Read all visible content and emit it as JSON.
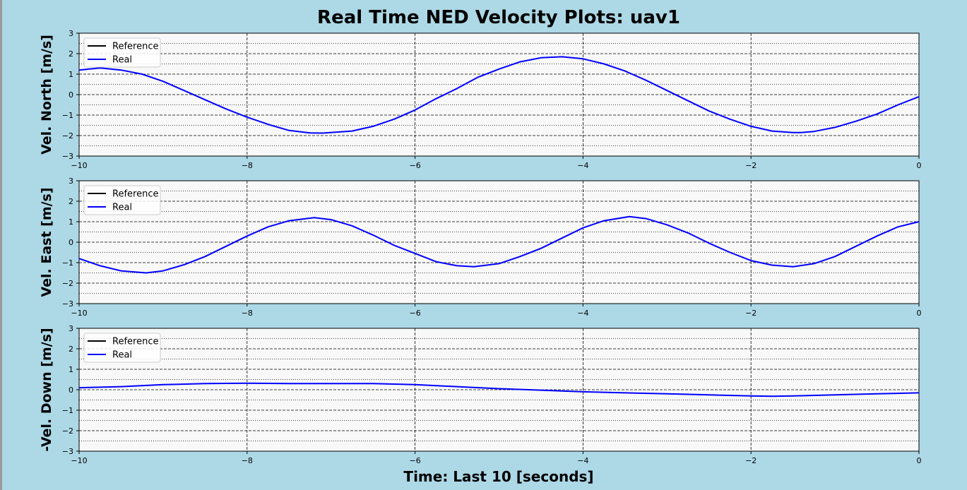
{
  "figure": {
    "title": "Real Time NED Velocity Plots: uav1",
    "xlabel": "Time: Last 10 [seconds]",
    "background_color": "#add8e6",
    "plot_background": "#f8f8f8"
  },
  "chart_data": [
    {
      "type": "line",
      "ylabel": "Vel. North [m/s]",
      "xlim": [
        -10,
        0
      ],
      "ylim": [
        -3,
        3
      ],
      "xticks": [
        "−10",
        "−8",
        "−6",
        "−4",
        "−2",
        "0"
      ],
      "yticks": [
        "−3",
        "−2",
        "−1",
        "0",
        "1",
        "2",
        "3"
      ],
      "grid": true,
      "legend_position": "top-left",
      "series": [
        {
          "name": "Reference",
          "color": "#000000",
          "x": [],
          "y": []
        },
        {
          "name": "Real",
          "color": "#0000ff",
          "x": [
            -10,
            -9.75,
            -9.5,
            -9.25,
            -9,
            -8.75,
            -8.5,
            -8.25,
            -8,
            -7.75,
            -7.5,
            -7.25,
            -7.1,
            -6.75,
            -6.5,
            -6.25,
            -6,
            -5.75,
            -5.5,
            -5.25,
            -5,
            -4.75,
            -4.5,
            -4.25,
            -4,
            -3.75,
            -3.5,
            -3.25,
            -3,
            -2.75,
            -2.5,
            -2.25,
            -2,
            -1.75,
            -1.5,
            -1.4,
            -1.25,
            -1,
            -0.75,
            -0.5,
            -0.25,
            0
          ],
          "y": [
            1.2,
            1.3,
            1.2,
            1.0,
            0.65,
            0.2,
            -0.25,
            -0.7,
            -1.1,
            -1.45,
            -1.75,
            -1.87,
            -1.88,
            -1.78,
            -1.55,
            -1.2,
            -0.75,
            -0.2,
            0.3,
            0.85,
            1.25,
            1.6,
            1.8,
            1.85,
            1.75,
            1.5,
            1.15,
            0.7,
            0.2,
            -0.3,
            -0.8,
            -1.2,
            -1.55,
            -1.78,
            -1.85,
            -1.85,
            -1.8,
            -1.6,
            -1.3,
            -0.95,
            -0.5,
            -0.1
          ]
        }
      ]
    },
    {
      "type": "line",
      "ylabel": "Vel. East [m/s]",
      "xlim": [
        -10,
        0
      ],
      "ylim": [
        -3,
        3
      ],
      "xticks": [
        "−10",
        "−8",
        "−6",
        "−4",
        "−2",
        "0"
      ],
      "yticks": [
        "−3",
        "−2",
        "−1",
        "0",
        "1",
        "2",
        "3"
      ],
      "grid": true,
      "legend_position": "top-left",
      "series": [
        {
          "name": "Reference",
          "color": "#000000",
          "x": [],
          "y": []
        },
        {
          "name": "Real",
          "color": "#0000ff",
          "x": [
            -10,
            -9.75,
            -9.5,
            -9.2,
            -9,
            -8.75,
            -8.5,
            -8.25,
            -8,
            -7.75,
            -7.5,
            -7.2,
            -7,
            -6.75,
            -6.5,
            -6.25,
            -6,
            -5.75,
            -5.5,
            -5.3,
            -5,
            -4.75,
            -4.5,
            -4.25,
            -4,
            -3.75,
            -3.45,
            -3.25,
            -3,
            -2.75,
            -2.5,
            -2.25,
            -2,
            -1.75,
            -1.5,
            -1.25,
            -1,
            -0.75,
            -0.5,
            -0.25,
            0
          ],
          "y": [
            -0.8,
            -1.15,
            -1.4,
            -1.5,
            -1.4,
            -1.1,
            -0.7,
            -0.2,
            0.3,
            0.75,
            1.05,
            1.2,
            1.1,
            0.8,
            0.35,
            -0.15,
            -0.55,
            -0.95,
            -1.15,
            -1.2,
            -1.05,
            -0.7,
            -0.3,
            0.2,
            0.7,
            1.05,
            1.25,
            1.15,
            0.85,
            0.45,
            -0.05,
            -0.5,
            -0.9,
            -1.12,
            -1.2,
            -1.05,
            -0.7,
            -0.2,
            0.3,
            0.75,
            1.0
          ]
        }
      ]
    },
    {
      "type": "line",
      "ylabel": "-Vel. Down [m/s]",
      "xlim": [
        -10,
        0
      ],
      "ylim": [
        -3,
        3
      ],
      "xticks": [
        "−10",
        "−8",
        "−6",
        "−4",
        "−2",
        "0"
      ],
      "yticks": [
        "−3",
        "−2",
        "−1",
        "0",
        "1",
        "2",
        "3"
      ],
      "grid": true,
      "legend_position": "top-left",
      "series": [
        {
          "name": "Reference",
          "color": "#000000",
          "x": [],
          "y": []
        },
        {
          "name": "Real",
          "color": "#0000ff",
          "x": [
            -10,
            -9.5,
            -9,
            -8.5,
            -8,
            -7.5,
            -7,
            -6.5,
            -6,
            -5.5,
            -5,
            -4.5,
            -4,
            -3.5,
            -3,
            -2.5,
            -2,
            -1.75,
            -1.5,
            -1,
            -0.5,
            0
          ],
          "y": [
            0.1,
            0.15,
            0.25,
            0.3,
            0.32,
            0.3,
            0.3,
            0.3,
            0.25,
            0.15,
            0.05,
            -0.02,
            -0.1,
            -0.15,
            -0.2,
            -0.25,
            -0.3,
            -0.32,
            -0.3,
            -0.25,
            -0.2,
            -0.15
          ]
        }
      ]
    }
  ]
}
